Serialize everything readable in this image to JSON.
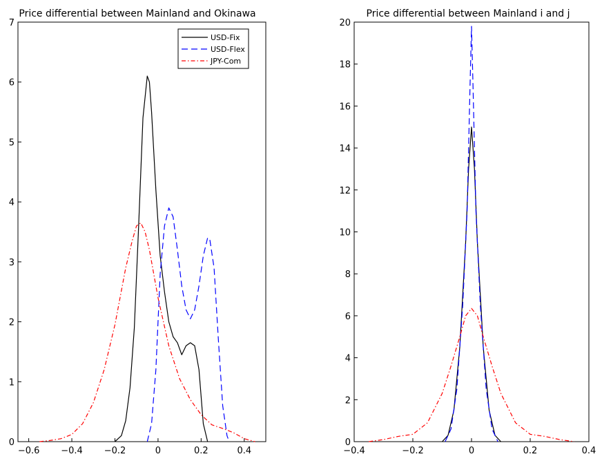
{
  "chart_data": [
    {
      "type": "line",
      "title": "Price differential between Mainland and Okinawa",
      "xlabel": "",
      "ylabel": "",
      "xlim": [
        -0.65,
        0.5
      ],
      "ylim": [
        0,
        7
      ],
      "xticks": [
        "-0.6",
        "-0.4",
        "-0.2",
        "0",
        "0.2",
        "0.4"
      ],
      "xtick_values": [
        -0.6,
        -0.4,
        -0.2,
        0,
        0.2,
        0.4
      ],
      "yticks": [
        "0",
        "1",
        "2",
        "3",
        "4",
        "5",
        "6",
        "7"
      ],
      "ytick_values": [
        0,
        1,
        2,
        3,
        4,
        5,
        6,
        7
      ],
      "grid": false,
      "legend": "top-right",
      "series": [
        {
          "name": "USD-Fix",
          "color": "#000000",
          "dash": "solid",
          "x": [
            -0.2,
            -0.17,
            -0.15,
            -0.13,
            -0.11,
            -0.09,
            -0.07,
            -0.05,
            -0.04,
            -0.03,
            -0.01,
            0.01,
            0.03,
            0.05,
            0.07,
            0.09,
            0.11,
            0.13,
            0.15,
            0.17,
            0.19,
            0.21,
            0.23
          ],
          "y": [
            0,
            0.1,
            0.35,
            0.9,
            1.9,
            3.6,
            5.4,
            6.1,
            6.0,
            5.5,
            4.2,
            3.1,
            2.5,
            2.0,
            1.75,
            1.65,
            1.45,
            1.6,
            1.65,
            1.6,
            1.2,
            0.3,
            0
          ]
        },
        {
          "name": "USD-Flex",
          "color": "#0000ff",
          "dash": "dashed",
          "x": [
            -0.05,
            -0.03,
            -0.01,
            0.01,
            0.03,
            0.05,
            0.07,
            0.09,
            0.11,
            0.13,
            0.15,
            0.17,
            0.19,
            0.21,
            0.23,
            0.24,
            0.26,
            0.28,
            0.3,
            0.32,
            0.33
          ],
          "y": [
            0,
            0.3,
            1.2,
            2.8,
            3.6,
            3.9,
            3.75,
            3.2,
            2.6,
            2.2,
            2.05,
            2.2,
            2.6,
            3.1,
            3.4,
            3.38,
            2.9,
            1.7,
            0.6,
            0.1,
            0
          ]
        },
        {
          "name": "JPY-Com",
          "color": "#ff0000",
          "dash": "dash-dot",
          "x": [
            -0.55,
            -0.5,
            -0.45,
            -0.4,
            -0.35,
            -0.3,
            -0.25,
            -0.2,
            -0.15,
            -0.12,
            -0.1,
            -0.08,
            -0.06,
            -0.04,
            -0.02,
            0,
            0.05,
            0.1,
            0.15,
            0.2,
            0.25,
            0.3,
            0.35,
            0.4,
            0.45
          ],
          "y": [
            0,
            0.02,
            0.05,
            0.12,
            0.3,
            0.65,
            1.2,
            1.95,
            2.9,
            3.35,
            3.6,
            3.65,
            3.5,
            3.2,
            2.8,
            2.4,
            1.6,
            1.05,
            0.7,
            0.45,
            0.28,
            0.22,
            0.15,
            0.05,
            0
          ]
        }
      ]
    },
    {
      "type": "line",
      "title": "Price differential between Mainland i and j",
      "xlabel": "",
      "ylabel": "",
      "xlim": [
        -0.4,
        0.4
      ],
      "ylim": [
        0,
        20
      ],
      "xticks": [
        "-0.4",
        "-0.2",
        "0",
        "0.2",
        "0.4"
      ],
      "xtick_values": [
        -0.4,
        -0.2,
        0,
        0.2,
        0.4
      ],
      "yticks": [
        "0",
        "2",
        "4",
        "6",
        "8",
        "10",
        "12",
        "14",
        "16",
        "18",
        "20"
      ],
      "ytick_values": [
        0,
        2,
        4,
        6,
        8,
        10,
        12,
        14,
        16,
        18,
        20
      ],
      "grid": false,
      "series": [
        {
          "name": "USD-Fix",
          "color": "#000000",
          "dash": "solid",
          "x": [
            -0.1,
            -0.08,
            -0.06,
            -0.04,
            -0.02,
            -0.01,
            0,
            0.01,
            0.02,
            0.04,
            0.06,
            0.08,
            0.1
          ],
          "y": [
            0,
            0.3,
            1.5,
            4.5,
            9.5,
            13.0,
            15.0,
            13.0,
            9.5,
            4.5,
            1.5,
            0.3,
            0
          ]
        },
        {
          "name": "USD-Flex",
          "color": "#0000ff",
          "dash": "dashed",
          "x": [
            -0.09,
            -0.07,
            -0.05,
            -0.03,
            -0.015,
            -0.005,
            0,
            0.005,
            0.015,
            0.03,
            0.05,
            0.07,
            0.09
          ],
          "y": [
            0,
            0.6,
            2.5,
            6.5,
            11.0,
            17.0,
            19.8,
            17.0,
            11.0,
            6.5,
            2.5,
            0.6,
            0
          ]
        },
        {
          "name": "JPY-Com",
          "color": "#ff0000",
          "dash": "dash-dot",
          "x": [
            -0.35,
            -0.3,
            -0.25,
            -0.2,
            -0.15,
            -0.1,
            -0.07,
            -0.04,
            -0.02,
            0,
            0.02,
            0.04,
            0.07,
            0.1,
            0.15,
            0.2,
            0.25,
            0.3,
            0.35
          ],
          "y": [
            0,
            0.1,
            0.25,
            0.35,
            0.9,
            2.3,
            3.6,
            5.0,
            6.0,
            6.35,
            6.0,
            5.0,
            3.6,
            2.3,
            0.9,
            0.35,
            0.25,
            0.1,
            0
          ]
        }
      ]
    }
  ]
}
